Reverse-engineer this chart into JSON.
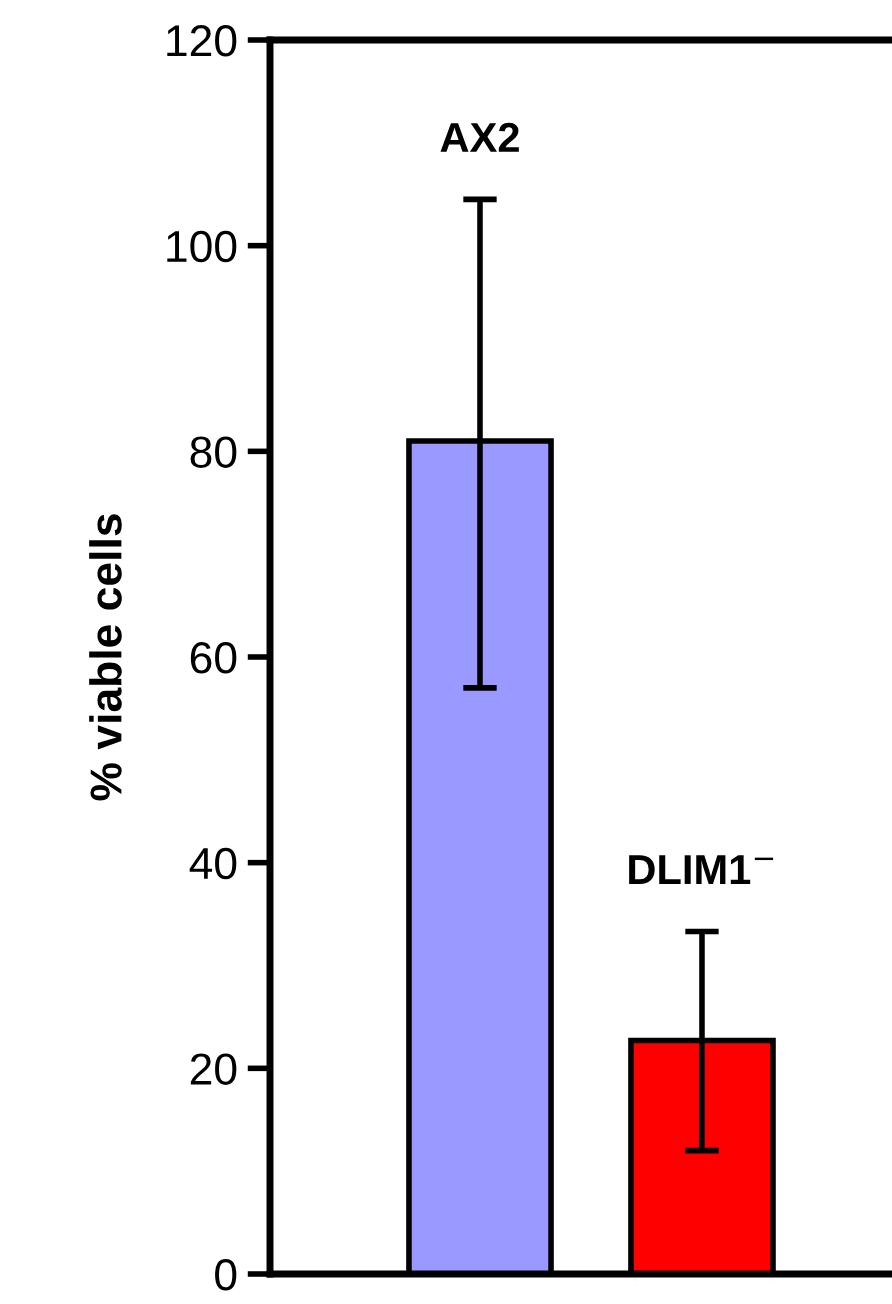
{
  "chart_data": {
    "type": "bar",
    "ylabel": "% viable cells",
    "categories": [
      "AX2",
      "DLIM1$^{−}$"
    ],
    "values": [
      81,
      22.7
    ],
    "colors": [
      "#9999ff",
      "#ff0000"
    ],
    "errors": [
      [
        57,
        104.5
      ],
      [
        12,
        33.3
      ]
    ],
    "ylim": [
      0,
      120
    ],
    "yticks": [
      0,
      20,
      40,
      60,
      80,
      100,
      120
    ],
    "grid": false,
    "legend": false
  }
}
